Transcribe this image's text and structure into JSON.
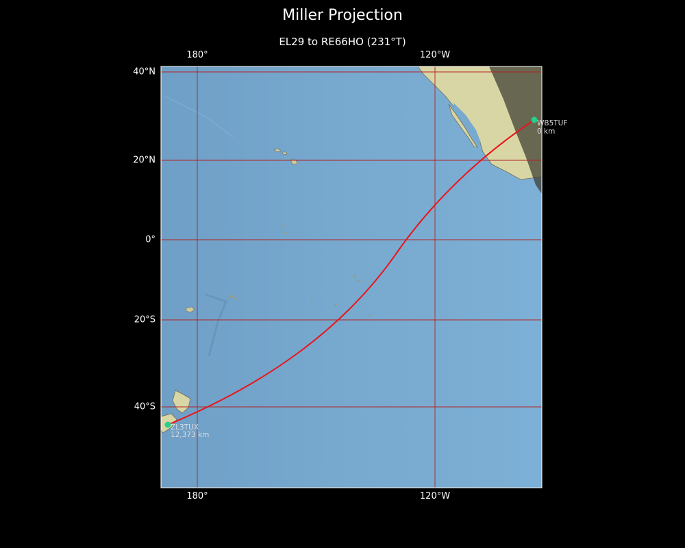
{
  "title": "Miller Projection",
  "subtitle": "EL29 to RE66HO (231°T)",
  "axes": {
    "lon_ticks": [
      "180°",
      "120°W"
    ],
    "lat_ticks": [
      "40°N",
      "20°N",
      "0°",
      "20°S",
      "40°S"
    ]
  },
  "stations": {
    "start": {
      "call": "WB5TUF",
      "distance": "0 km"
    },
    "end": {
      "call": "ZL3TUX",
      "distance": "12,373 km"
    }
  },
  "colors": {
    "ocean": "#78a9cf",
    "land": "#d9d6a6",
    "path": "#e8161b",
    "station": "#27d08b",
    "grid": "#b22222",
    "night": "#4b4a3c"
  }
}
